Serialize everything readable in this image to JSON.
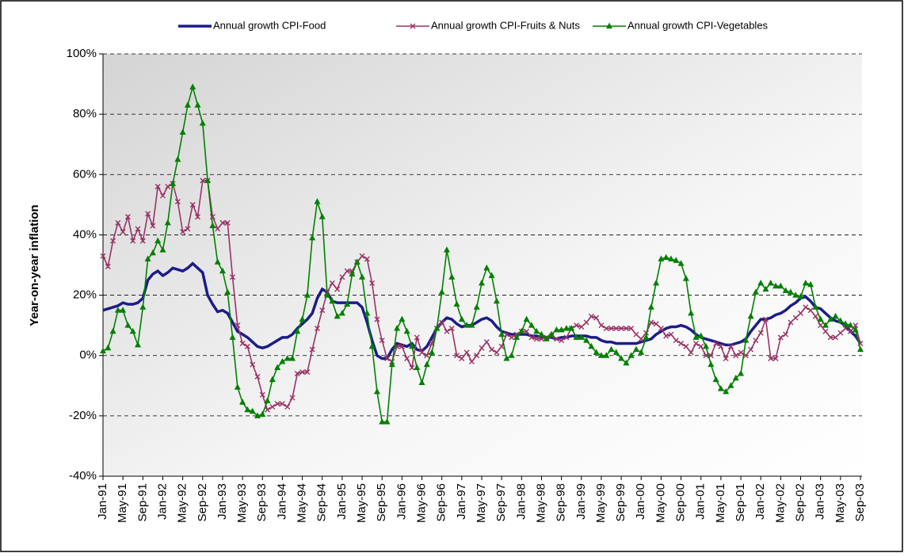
{
  "chart_data": {
    "type": "line",
    "y_label": "Year-on-year inflation",
    "categories": [
      "Jan-91",
      null,
      null,
      null,
      "May-91",
      null,
      null,
      null,
      "Sep-91",
      null,
      null,
      null,
      "Jan-92",
      null,
      null,
      null,
      "May-92",
      null,
      null,
      null,
      "Sep-92",
      null,
      null,
      null,
      "Jan-93",
      null,
      null,
      null,
      "May-93",
      null,
      null,
      null,
      "Sep-93",
      null,
      null,
      null,
      "Jan-94",
      null,
      null,
      null,
      "May-94",
      null,
      null,
      null,
      "Sep-94",
      null,
      null,
      null,
      "Jan-95",
      null,
      null,
      null,
      "May-95",
      null,
      null,
      null,
      "Sep-95",
      null,
      null,
      null,
      "Jan-96",
      null,
      null,
      null,
      "May-96",
      null,
      null,
      null,
      "Sep-96",
      null,
      null,
      null,
      "Jan-97",
      null,
      null,
      null,
      "May-97",
      null,
      null,
      null,
      "Sep-97",
      null,
      null,
      null,
      "Jan-98",
      null,
      null,
      null,
      "May-98",
      null,
      null,
      null,
      "Sep-98",
      null,
      null,
      null,
      "Jan-99",
      null,
      null,
      null,
      "May-99",
      null,
      null,
      null,
      "Sep-99",
      null,
      null,
      null,
      "Jan-00",
      null,
      null,
      null,
      "May-00",
      null,
      null,
      null,
      "Sep-00",
      null,
      null,
      null,
      "Jan-01",
      null,
      null,
      null,
      "May-01",
      null,
      null,
      null,
      "Sep-01",
      null,
      null,
      null,
      "Jan-02",
      null,
      null,
      null,
      "May-02",
      null,
      null,
      null,
      "Sep-02",
      null,
      null,
      null,
      "Jan-03",
      null,
      null,
      null,
      "May-03",
      null,
      null,
      null,
      "Sep-03"
    ],
    "series": [
      {
        "name": "Annual growth CPI-Food",
        "color": "#1c1c8a",
        "marker": "none",
        "values": [
          15,
          15.5,
          16,
          16.5,
          17.5,
          17,
          17,
          17.5,
          19,
          25,
          27,
          28,
          26.5,
          27.5,
          29,
          28.5,
          28,
          29,
          30.5,
          29,
          27.5,
          20,
          17,
          14.5,
          15,
          14,
          11,
          8,
          7,
          6,
          4.5,
          3,
          2.5,
          3,
          4,
          5,
          6,
          6,
          7,
          9,
          10.5,
          12,
          14,
          19,
          22,
          21,
          18,
          17.5,
          17.5,
          17.5,
          17.5,
          17.5,
          16,
          11,
          5,
          0,
          -1,
          -1,
          2,
          4,
          3.5,
          3,
          4,
          2,
          1.5,
          3,
          6,
          9,
          11,
          12.5,
          12,
          10.5,
          9.5,
          10,
          10,
          11,
          12,
          12.5,
          11.5,
          9.5,
          8,
          7.5,
          7,
          7,
          7,
          7,
          6.5,
          6.5,
          6,
          6,
          6,
          5.5,
          6,
          6,
          6.5,
          6.5,
          6.5,
          6.5,
          6,
          6,
          5,
          4.5,
          4.5,
          4,
          4,
          4,
          4,
          4,
          4.5,
          5,
          5.5,
          7,
          8,
          9,
          9.5,
          9.5,
          10,
          9.5,
          8.5,
          7,
          6,
          5.5,
          5,
          4.5,
          4,
          3.5,
          3.5,
          4,
          4.5,
          5.5,
          8,
          10,
          12,
          12,
          12.5,
          13.5,
          14,
          15,
          16.5,
          17.5,
          19,
          19.5,
          18,
          16,
          15.5,
          14,
          12.5,
          11.5,
          11,
          10,
          8,
          6.5,
          4
        ]
      },
      {
        "name": "Annual growth CPI-Fruits & Nuts",
        "color": "#993366",
        "marker": "x",
        "values": [
          33,
          29.5,
          38,
          44,
          41,
          46,
          38,
          42,
          38,
          47,
          43,
          56,
          53,
          56,
          57,
          51,
          41,
          42,
          50,
          46,
          58,
          58,
          46,
          42,
          44,
          44,
          26,
          10,
          4,
          3,
          -3,
          -7,
          -13,
          -18,
          -17,
          -16,
          -16,
          -17,
          -14,
          -6,
          -5.5,
          -5.5,
          2,
          9,
          15,
          21,
          24,
          22,
          26,
          28,
          28,
          31,
          33,
          32,
          24,
          12,
          5,
          -1,
          -2,
          3,
          3,
          -1,
          -4,
          6,
          1,
          0,
          4,
          9,
          11,
          8,
          9,
          0,
          -1,
          1,
          -2,
          0,
          2.5,
          4.5,
          2,
          1,
          3,
          7,
          6,
          7,
          8,
          8,
          6,
          5.5,
          5.5,
          6,
          6.5,
          5.5,
          5,
          6,
          9,
          10,
          9.5,
          11,
          13,
          12.5,
          10,
          9,
          9,
          9,
          9,
          9,
          9,
          7,
          5.5,
          7.5,
          11,
          10.5,
          9,
          6.5,
          7,
          5,
          4,
          3,
          1,
          4,
          3,
          0,
          0,
          4,
          3,
          -1,
          3,
          0,
          1,
          0,
          2,
          5,
          7.5,
          12,
          -1,
          -1,
          6,
          7,
          11,
          12.5,
          14,
          16,
          15,
          13,
          10,
          8,
          6,
          6,
          7.5,
          9,
          8,
          10,
          4
        ]
      },
      {
        "name": "Annual growth CPI-Vegetables",
        "color": "#008000",
        "marker": "triangle",
        "values": [
          1.5,
          2.5,
          8,
          15,
          15,
          10,
          8,
          3.5,
          16,
          32,
          34,
          38,
          35,
          44,
          57,
          65,
          74,
          83,
          89,
          83,
          77,
          58,
          43,
          31,
          28,
          21,
          6,
          -10.5,
          -15.5,
          -18,
          -18.5,
          -20,
          -19.5,
          -15,
          -8,
          -4,
          -2,
          -1,
          -1,
          8,
          12,
          20,
          39,
          51,
          46,
          20,
          18,
          13,
          14,
          17,
          27,
          31,
          26,
          14,
          3,
          -12,
          -22,
          -22,
          -3,
          9,
          12,
          8,
          3,
          -4,
          -9,
          -3,
          1,
          9,
          21,
          35,
          26,
          17,
          12,
          10,
          10,
          16,
          24,
          29,
          26.5,
          18,
          7,
          -1,
          0,
          6,
          8,
          12,
          10,
          8,
          7,
          5.5,
          7,
          8.5,
          8.5,
          9,
          9,
          6,
          6,
          5,
          3,
          1,
          0,
          0,
          2,
          1,
          -1,
          -2.5,
          0,
          2,
          1,
          6,
          16,
          24,
          32,
          32.5,
          32,
          31.5,
          30.5,
          25.5,
          14,
          6,
          6.5,
          3,
          -3,
          -8,
          -11,
          -12,
          -10,
          -7.5,
          -6,
          5,
          13,
          21,
          24,
          22,
          24,
          23,
          23,
          21.5,
          21,
          20,
          19.5,
          24,
          23.5,
          16,
          12,
          10,
          12,
          13,
          11.5,
          10.5,
          10,
          8.5,
          2
        ]
      }
    ],
    "ylim": [
      -40,
      100
    ],
    "yticks": [
      {
        "value": -40,
        "label": "-40%"
      },
      {
        "value": -20,
        "label": "-20%"
      },
      {
        "value": 0,
        "label": "0%"
      },
      {
        "value": 20,
        "label": "20%"
      },
      {
        "value": 40,
        "label": "40%"
      },
      {
        "value": 60,
        "label": "60%"
      },
      {
        "value": 80,
        "label": "80%"
      },
      {
        "value": 100,
        "label": "100%"
      }
    ],
    "grid": true,
    "legend": "top"
  }
}
